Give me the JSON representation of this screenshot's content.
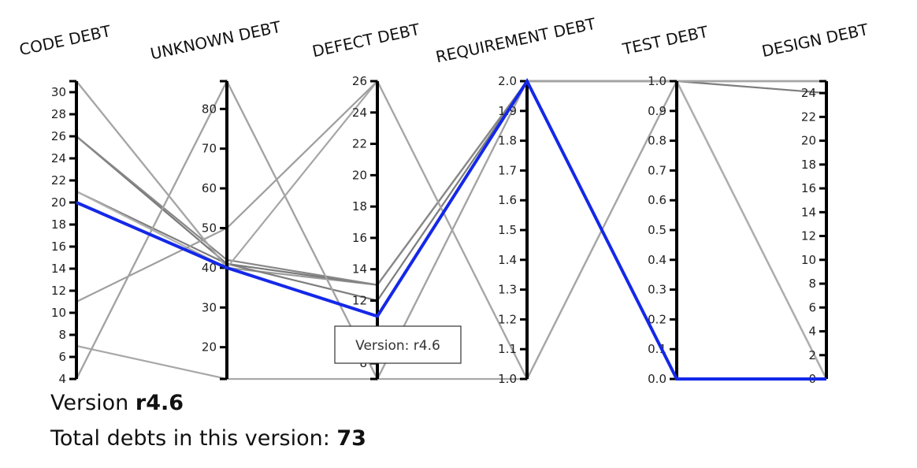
{
  "chart_data": {
    "type": "parallel-coordinates",
    "axes": [
      {
        "name": "CODE DEBT",
        "min": 4,
        "max": 31,
        "ticks": [
          4,
          6,
          8,
          10,
          12,
          14,
          16,
          18,
          20,
          22,
          24,
          26,
          28,
          30
        ]
      },
      {
        "name": "UNKNOWN DEBT",
        "min": 12,
        "max": 87,
        "ticks": [
          20,
          30,
          40,
          50,
          60,
          70,
          80
        ]
      },
      {
        "name": "DEFECT DEBT",
        "min": 7,
        "max": 26,
        "ticks": [
          8,
          10,
          12,
          14,
          16,
          18,
          20,
          22,
          24,
          26
        ]
      },
      {
        "name": "REQUIREMENT DEBT",
        "min": 1.0,
        "max": 2.0,
        "ticks": [
          1.0,
          1.1,
          1.2,
          1.3,
          1.4,
          1.5,
          1.6,
          1.7,
          1.8,
          1.9,
          2.0
        ]
      },
      {
        "name": "TEST DEBT",
        "min": 0.0,
        "max": 1.0,
        "ticks": [
          0.0,
          0.1,
          0.2,
          0.3,
          0.4,
          0.5,
          0.6,
          0.7,
          0.8,
          0.9,
          1.0
        ]
      },
      {
        "name": "DESIGN DEBT",
        "min": 0,
        "max": 25,
        "ticks": [
          0,
          2,
          4,
          6,
          8,
          10,
          12,
          14,
          16,
          18,
          20,
          22,
          24
        ]
      }
    ],
    "highlighted": {
      "values": [
        20,
        40,
        11,
        2.0,
        0.0,
        0
      ],
      "color": "#1428e8"
    },
    "background_lines": [
      {
        "values": [
          31,
          40,
          13,
          2.0,
          1.0,
          0
        ],
        "color": "#9a9a9a"
      },
      {
        "values": [
          26,
          41,
          13,
          2.0,
          1.0,
          0
        ],
        "color": "#7a7a7a"
      },
      {
        "values": [
          26,
          42,
          13,
          2.0,
          1.0,
          0
        ],
        "color": "#888888"
      },
      {
        "values": [
          21,
          41,
          12,
          2.0,
          1.0,
          24
        ],
        "color": "#7d7d7d"
      },
      {
        "values": [
          21,
          40,
          11,
          2.0,
          1.0,
          0
        ],
        "color": "#b0b0b0"
      },
      {
        "values": [
          4,
          87,
          7,
          2.0,
          1.0,
          25
        ],
        "color": "#a0a0a0"
      },
      {
        "values": [
          11,
          50,
          26,
          1.0,
          1.0,
          25
        ],
        "color": "#9e9e9e"
      },
      {
        "values": [
          7,
          12,
          7,
          1.0,
          1.0,
          25
        ],
        "color": "#a8a8a8"
      },
      {
        "values": [
          4,
          87,
          7,
          2.0,
          1.0,
          25
        ],
        "color": "#a3a3a3"
      },
      {
        "values": [
          31,
          40,
          26,
          1.0,
          1.0,
          25
        ],
        "color": "#a6a6a6"
      }
    ],
    "tooltip": "Version: r4.6"
  },
  "info": {
    "version_label": "Version ",
    "version_value": "r4.6",
    "total_label": "Total debts in this version: ",
    "total_value": "73"
  }
}
